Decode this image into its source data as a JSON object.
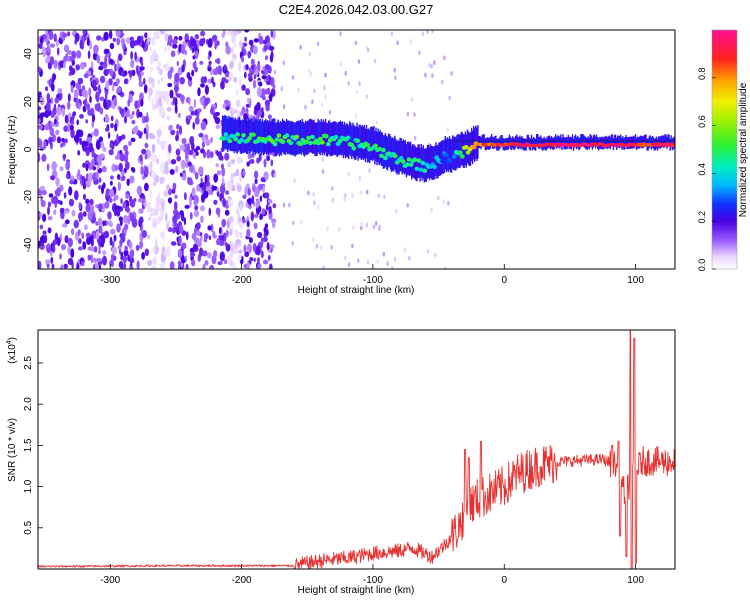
{
  "figure": {
    "title": "C2E4.2026.042.03.00.G27"
  },
  "chart_data": [
    {
      "type": "heatmap",
      "title": "C2E4.2026.042.03.00.G27",
      "xlabel": "Height of straight line (km)",
      "ylabel": "Frequency (Hz)",
      "xlim": [
        -355,
        130
      ],
      "ylim": [
        -50,
        50
      ],
      "xticks": [
        -300,
        -200,
        -100,
        0,
        100
      ],
      "yticks": [
        -40,
        -20,
        0,
        20,
        40
      ],
      "colorbar": {
        "label": "Normalized spectral amplitude",
        "range": [
          0,
          1
        ],
        "ticks": [
          0.0,
          0.2,
          0.4,
          0.6,
          0.8
        ]
      },
      "ridge": {
        "x": [
          -215,
          -200,
          -180,
          -160,
          -140,
          -120,
          -100,
          -90,
          -80,
          -70,
          -60,
          -50,
          -45,
          -40,
          -30,
          -20,
          0,
          50,
          90,
          100,
          130
        ],
        "freq": [
          6,
          5,
          4,
          4,
          4,
          3,
          1,
          -2,
          -4,
          -6,
          -7,
          -5,
          -3,
          -3,
          -1,
          2,
          2,
          2,
          2,
          2,
          2
        ],
        "amplitude": [
          0.4,
          0.45,
          0.5,
          0.5,
          0.5,
          0.45,
          0.45,
          0.45,
          0.45,
          0.45,
          0.4,
          0.35,
          0.3,
          0.3,
          0.6,
          0.8,
          0.9,
          0.95,
          0.95,
          0.9,
          0.9
        ]
      },
      "noise_region_x": [
        -355,
        -175
      ]
    },
    {
      "type": "line",
      "xlabel": "Height of straight line (km)",
      "ylabel": "SNR (10 * v/v)",
      "scale_label": "(x10",
      "scale_exp": "4",
      "xlim": [
        -355,
        130
      ],
      "ylim": [
        0,
        29000
      ],
      "xticks": [
        -300,
        -200,
        -100,
        0,
        100
      ],
      "yticks": [
        5000,
        10000,
        15000,
        20000,
        25000
      ],
      "ytick_labels": [
        "0.5",
        "1.0",
        "1.5",
        "2.0",
        "2.5"
      ],
      "color": "#e83030",
      "series_points": [
        [
          -355,
          300
        ],
        [
          -250,
          400
        ],
        [
          -160,
          400
        ],
        [
          -140,
          1000
        ],
        [
          -120,
          1300
        ],
        [
          -100,
          1900
        ],
        [
          -80,
          2200
        ],
        [
          -70,
          2600
        ],
        [
          -55,
          1500
        ],
        [
          -45,
          3000
        ],
        [
          -35,
          5000
        ],
        [
          -28,
          7500
        ],
        [
          -20,
          8500
        ],
        [
          -10,
          9200
        ],
        [
          0,
          10000
        ],
        [
          10,
          11500
        ],
        [
          25,
          12500
        ],
        [
          40,
          13000
        ],
        [
          60,
          13200
        ],
        [
          75,
          13300
        ],
        [
          85,
          12500
        ],
        [
          92,
          9000
        ],
        [
          97,
          11000
        ],
        [
          105,
          13100
        ],
        [
          130,
          13000
        ]
      ],
      "spikes": [
        [
          -30,
          14500
        ],
        [
          -27,
          13500
        ],
        [
          -18,
          15500
        ],
        [
          82,
          15000
        ],
        [
          87,
          15500
        ],
        [
          93,
          19500
        ],
        [
          96,
          29000
        ],
        [
          99,
          28000
        ],
        [
          101,
          12000
        ]
      ],
      "dips": [
        [
          88,
          4000
        ],
        [
          93,
          1500
        ],
        [
          97,
          0
        ],
        [
          100,
          700
        ]
      ]
    }
  ]
}
